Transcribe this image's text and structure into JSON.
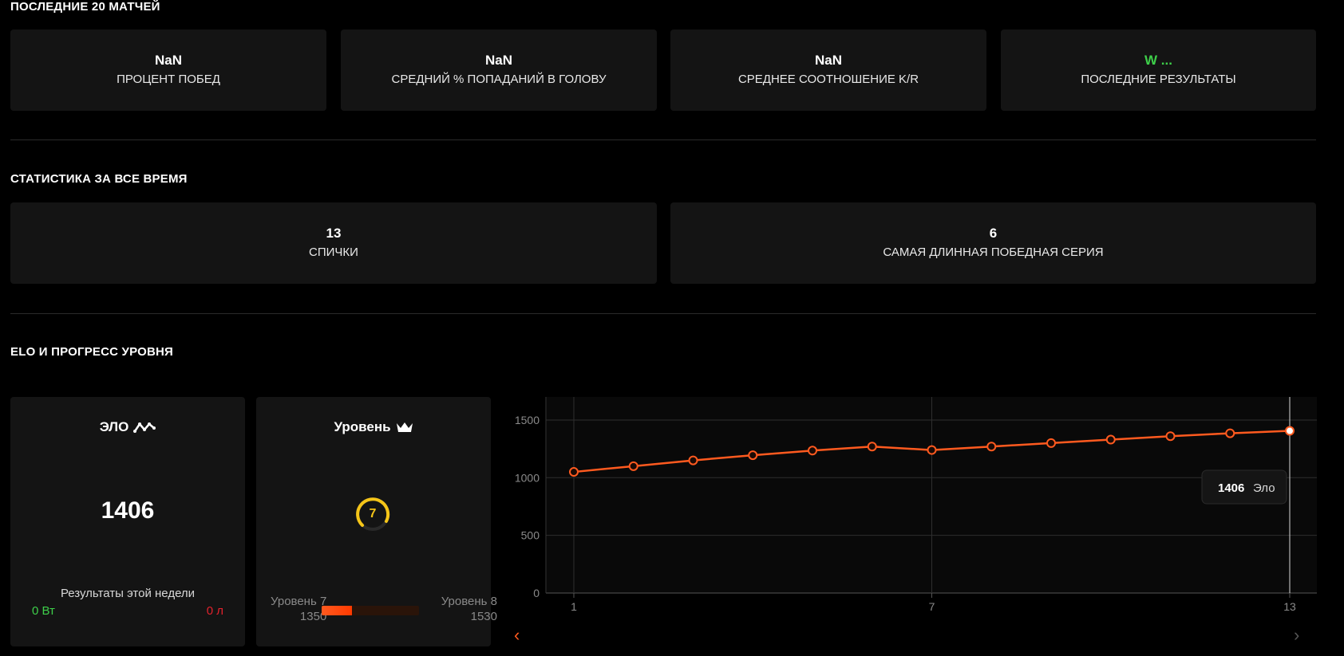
{
  "sections": {
    "last20": "ПОСЛЕДНИЕ 20 МАТЧЕЙ",
    "alltime": "СТАТИСТИКА ЗА ВСЕ ВРЕМЯ",
    "elo_progress": "ELO И ПРОГРЕСС УРОВНЯ"
  },
  "last20_cards": [
    {
      "value": "NaN",
      "label": "ПРОЦЕНТ ПОБЕД"
    },
    {
      "value": "NaN",
      "label": "СРЕДНИЙ % ПОПАДАНИЙ В ГОЛОВУ"
    },
    {
      "value": "NaN",
      "label": "СРЕДНЕЕ СООТНОШЕНИЕ K/R"
    },
    {
      "value": "W ...",
      "label": "ПОСЛЕДНИЕ РЕЗУЛЬТАТЫ"
    }
  ],
  "alltime_cards": [
    {
      "value": "13",
      "label": "СПИЧКИ"
    },
    {
      "value": "6",
      "label": "САМАЯ ДЛИННАЯ ПОБЕДНАЯ СЕРИЯ"
    }
  ],
  "elo_panel": {
    "title": "ЭЛО",
    "icon": "trend-icon",
    "value": "1406",
    "week_label": "Результаты этой недели",
    "wins": "0 Вт",
    "losses": "0 л"
  },
  "level_panel": {
    "title": "Уровень",
    "icon": "crown-icon",
    "level": "7",
    "current_level_label": "Уровень 7",
    "current_level_elo": "1350",
    "next_level_label": "Уровень 8",
    "next_level_elo": "1530",
    "progress_fraction": 0.31
  },
  "colors": {
    "accent": "#ff5a1f",
    "gauge": "#f5c518",
    "win": "#3ecf4a",
    "loss": "#e3222d"
  },
  "chart_data": {
    "type": "line",
    "x": [
      1,
      2,
      3,
      4,
      5,
      6,
      7,
      8,
      9,
      10,
      11,
      12,
      13
    ],
    "series": [
      {
        "values": [
          1050,
          1100,
          1150,
          1195,
          1235,
          1270,
          1240,
          1270,
          1300,
          1330,
          1360,
          1385,
          1406
        ]
      }
    ],
    "x_ticks": [
      1,
      7,
      13
    ],
    "y_ticks": [
      0,
      500,
      1000,
      1500
    ],
    "xlim": [
      1,
      13
    ],
    "ylim": [
      0,
      1700
    ],
    "grid": true,
    "tooltip": {
      "value": "1406",
      "unit": "Эло"
    }
  }
}
